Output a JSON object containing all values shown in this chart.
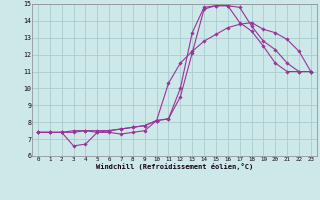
{
  "xlabel": "Windchill (Refroidissement éolien,°C)",
  "bg_color": "#cce8e8",
  "grid_color": "#aacccc",
  "line_color": "#993399",
  "xlim": [
    -0.5,
    23.5
  ],
  "ylim": [
    6,
    15
  ],
  "xticks": [
    0,
    1,
    2,
    3,
    4,
    5,
    6,
    7,
    8,
    9,
    10,
    11,
    12,
    13,
    14,
    15,
    16,
    17,
    18,
    19,
    20,
    21,
    22,
    23
  ],
  "yticks": [
    6,
    7,
    8,
    9,
    10,
    11,
    12,
    13,
    14,
    15
  ],
  "line1_x": [
    0,
    1,
    2,
    3,
    4,
    5,
    6,
    7,
    8,
    9,
    10,
    11,
    12,
    13,
    14,
    15,
    16,
    17,
    18,
    19,
    20,
    21,
    22,
    23
  ],
  "line1_y": [
    7.4,
    7.4,
    7.4,
    7.5,
    7.5,
    7.4,
    7.5,
    7.6,
    7.7,
    7.8,
    8.1,
    8.2,
    10.0,
    13.3,
    14.8,
    14.9,
    14.9,
    13.9,
    13.4,
    12.5,
    11.5,
    11.0,
    11.0,
    11.0
  ],
  "line2_x": [
    0,
    1,
    2,
    3,
    4,
    5,
    6,
    7,
    8,
    9,
    10,
    11,
    12,
    13,
    14,
    15,
    16,
    17,
    18,
    19,
    20,
    21,
    22,
    23
  ],
  "line2_y": [
    7.4,
    7.4,
    7.4,
    6.6,
    6.7,
    7.4,
    7.4,
    7.3,
    7.4,
    7.5,
    8.1,
    8.2,
    9.5,
    12.1,
    14.7,
    14.9,
    14.9,
    14.8,
    13.7,
    12.8,
    12.3,
    11.5,
    11.0,
    11.0
  ],
  "line3_x": [
    0,
    1,
    2,
    3,
    4,
    5,
    6,
    7,
    8,
    9,
    10,
    11,
    12,
    13,
    14,
    15,
    16,
    17,
    18,
    19,
    20,
    21,
    22,
    23
  ],
  "line3_y": [
    7.4,
    7.4,
    7.4,
    7.4,
    7.5,
    7.5,
    7.5,
    7.6,
    7.7,
    7.8,
    8.1,
    10.3,
    11.5,
    12.2,
    12.8,
    13.2,
    13.6,
    13.8,
    13.9,
    13.5,
    13.3,
    12.9,
    12.2,
    11.0
  ]
}
